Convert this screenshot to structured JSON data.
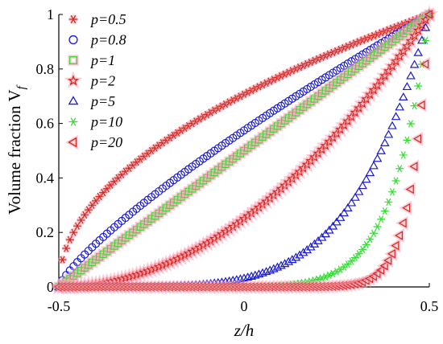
{
  "chart_data": {
    "type": "scatter",
    "title": "",
    "xlabel": "z/h",
    "ylabel": "Volume fraction V",
    "ylabel_subscript": "f",
    "xlim": [
      -0.5,
      0.5
    ],
    "ylim": [
      0,
      1
    ],
    "x_ticks": [
      "-0.5",
      "0",
      "0.5"
    ],
    "y_ticks": [
      "0",
      "0.2",
      "0.4",
      "0.6",
      "0.8",
      "1"
    ],
    "grid": false,
    "legend_position": "top-left",
    "series": [
      {
        "name": "p=0.5",
        "exponent": 0.5,
        "marker": "asterisk",
        "color": "#cc2a1b",
        "glow": "#ff9db5"
      },
      {
        "name": "p=0.8",
        "exponent": 0.8,
        "marker": "circle",
        "color": "#1a1ad6",
        "glow": null
      },
      {
        "name": "p=1",
        "exponent": 1,
        "marker": "square",
        "color": "#33dd33",
        "glow": "#ff9db5"
      },
      {
        "name": "p=2",
        "exponent": 2,
        "marker": "star",
        "color": "#cc2a1b",
        "glow": "#ff9db5"
      },
      {
        "name": "p=5",
        "exponent": 5,
        "marker": "triangle-up",
        "color": "#1a1ad6",
        "glow": null
      },
      {
        "name": "p=10",
        "exponent": 10,
        "marker": "asterisk",
        "color": "#33dd33",
        "glow": null
      },
      {
        "name": "p=20",
        "exponent": 20,
        "marker": "triangle-left",
        "color": "#cc2a1b",
        "glow": "#ff9db5"
      }
    ]
  }
}
